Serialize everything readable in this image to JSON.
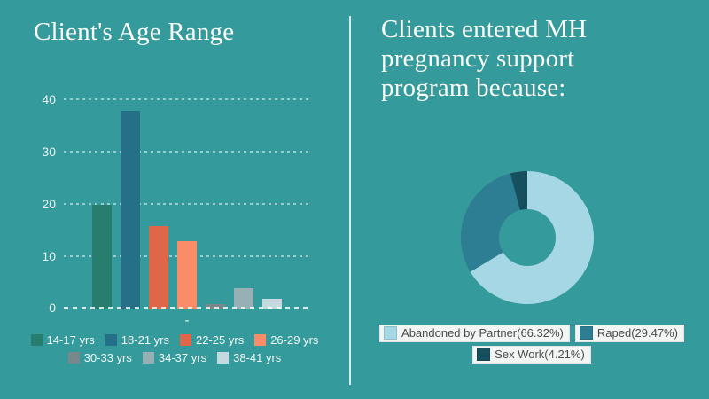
{
  "page": {
    "background_color": "#359a9b",
    "divider_color": "#d5ecee",
    "title_color": "#faf9f4"
  },
  "left_panel": {
    "title": "Client's Age Range"
  },
  "right_panel": {
    "title": "Clients entered MH pregnancy support program because:"
  },
  "chart_data": [
    {
      "type": "bar",
      "title": "Client's Age Range",
      "categories": [
        "14-17 yrs",
        "18-21 yrs",
        "22-25 yrs",
        "26-29 yrs",
        "30-33 yrs",
        "34-37 yrs",
        "38-41 yrs"
      ],
      "values": [
        20,
        38,
        16,
        13,
        1,
        4,
        2
      ],
      "colors": [
        "#287e6e",
        "#256f88",
        "#e0664a",
        "#fb8c68",
        "#79888b",
        "#97b0b6",
        "#c4dade"
      ],
      "xlabel": "-",
      "ylabel": "",
      "yticks": [
        0,
        10,
        20,
        30,
        40
      ],
      "ylim": [
        0,
        40
      ],
      "grid": true,
      "grid_style": "dashed",
      "legend_position": "bottom",
      "legend_rows": [
        4,
        3
      ]
    },
    {
      "type": "pie",
      "donut": true,
      "title": "Clients entered MH pregnancy support program because:",
      "labels": [
        "Abandoned by Partner(66.32%)",
        "Raped(29.47%)",
        "Sex Work(4.21%)"
      ],
      "values": [
        66.32,
        29.47,
        4.21
      ],
      "colors": [
        "#a5d8e4",
        "#2d7e93",
        "#16505f"
      ],
      "start_angle_deg": 0,
      "direction": "clockwise",
      "legend_position": "bottom",
      "legend_rows": [
        2,
        1
      ]
    }
  ]
}
